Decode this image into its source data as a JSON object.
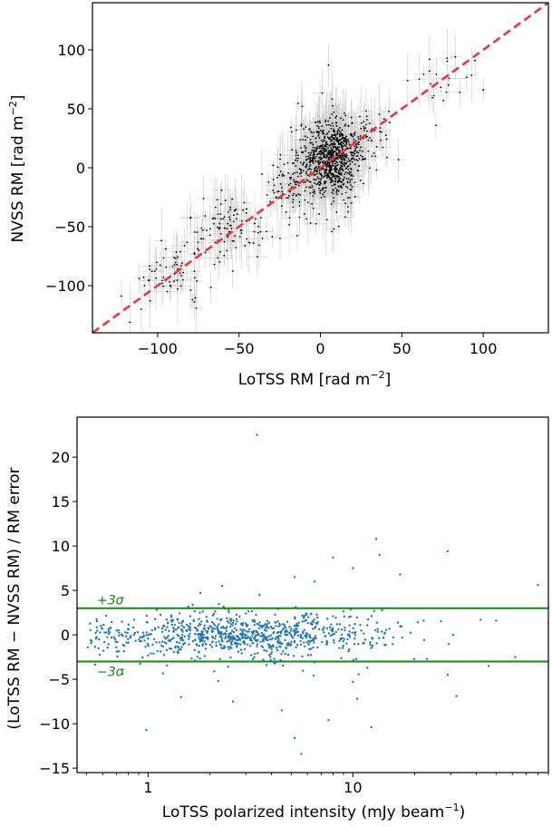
{
  "chart_data": [
    {
      "type": "scatter",
      "xlabel": "LoTSS RM [rad m",
      "xlabel_sup": "−2",
      "xlabel_end": "]",
      "ylabel": "NVSS RM [rad m",
      "ylabel_sup": "−2",
      "ylabel_end": "]",
      "xlim": [
        -140,
        140
      ],
      "ylim": [
        -140,
        140
      ],
      "xticks": [
        -100,
        -50,
        0,
        50,
        100
      ],
      "yticks": [
        -100,
        -50,
        0,
        50,
        100
      ],
      "xtick_labels": [
        "−100",
        "−50",
        "0",
        "50",
        "100"
      ],
      "ytick_labels": [
        "−100",
        "−50",
        "0",
        "50",
        "100"
      ],
      "reference_line": {
        "slope": 1,
        "intercept": 0,
        "color": "#e8383d",
        "style": "dashed"
      },
      "point_color": "#000000",
      "errorbar_color": "#cccccc",
      "clusters": [
        {
          "x_center": 8,
          "y_center": 10,
          "x_spread": 8,
          "y_spread": 14,
          "count": 700
        },
        {
          "x_center": 0,
          "y_center": 0,
          "x_spread": 12,
          "y_spread": 22,
          "count": 260
        },
        {
          "x_center": -55,
          "y_center": -50,
          "x_spread": 13,
          "y_spread": 13,
          "count": 110
        },
        {
          "x_center": -90,
          "y_center": -88,
          "x_spread": 12,
          "y_spread": 12,
          "count": 60
        },
        {
          "x_center": -20,
          "y_center": -18,
          "x_spread": 7,
          "y_spread": 7,
          "count": 50
        },
        {
          "x_center": 30,
          "y_center": 28,
          "x_spread": 10,
          "y_spread": 12,
          "count": 60
        },
        {
          "x_center": 70,
          "y_center": 70,
          "x_spread": 12,
          "y_spread": 14,
          "count": 20
        }
      ],
      "isolated_points": [
        {
          "x": 100,
          "y": 66
        },
        {
          "x": 95,
          "y": 91
        },
        {
          "x": 67,
          "y": 92
        },
        {
          "x": 5,
          "y": 87
        },
        {
          "x": -110,
          "y": -120
        },
        {
          "x": -117,
          "y": -131
        },
        {
          "x": -108,
          "y": -100
        }
      ]
    },
    {
      "type": "scatter",
      "xlabel": "LoTSS polarized intensity (mJy beam",
      "xlabel_sup": "−1",
      "xlabel_end": ")",
      "ylabel": "(LoTSS RM − NVSS RM) / RM error",
      "x_scale": "log",
      "xlim": [
        0.45,
        90
      ],
      "ylim": [
        -15.5,
        24.5
      ],
      "xticks": [
        1,
        10
      ],
      "xtick_labels": [
        "1",
        "10"
      ],
      "yticks": [
        -15,
        -10,
        -5,
        0,
        5,
        10,
        15,
        20
      ],
      "ytick_labels": [
        "−15",
        "−10",
        "−5",
        "0",
        "5",
        "10",
        "15",
        "20"
      ],
      "point_color": "#1f77b4",
      "reference_lines": [
        {
          "y": 3,
          "label": "+3σ",
          "color": "#138a13"
        },
        {
          "y": -3,
          "label": "−3σ",
          "color": "#138a13"
        }
      ],
      "bulk": {
        "x_log10_center": 0.45,
        "x_log10_spread": 0.35,
        "x_log10_min": -0.3,
        "x_log10_max": 1.95,
        "y_spread": 1.3,
        "count": 900
      },
      "outliers": [
        {
          "x": 3.4,
          "y": 22.5
        },
        {
          "x": 13,
          "y": 10.8
        },
        {
          "x": 8,
          "y": 8.7
        },
        {
          "x": 13.5,
          "y": 9
        },
        {
          "x": 29,
          "y": 9.4
        },
        {
          "x": 17,
          "y": 6.8
        },
        {
          "x": 10,
          "y": 7.5
        },
        {
          "x": 5.2,
          "y": 6.5
        },
        {
          "x": 6.5,
          "y": 6
        },
        {
          "x": 80,
          "y": 5.6
        },
        {
          "x": 2.3,
          "y": 5.5
        },
        {
          "x": 1.8,
          "y": 4.7
        },
        {
          "x": 3.5,
          "y": 4.5
        },
        {
          "x": 0.98,
          "y": -10.7
        },
        {
          "x": 5.2,
          "y": -11.6
        },
        {
          "x": 5.6,
          "y": -13.4
        },
        {
          "x": 4.5,
          "y": -8.5
        },
        {
          "x": 7.6,
          "y": -9.6
        },
        {
          "x": 12.3,
          "y": -10.4
        },
        {
          "x": 1.45,
          "y": -7
        },
        {
          "x": 2.6,
          "y": -7.5
        },
        {
          "x": 10.5,
          "y": -7.2
        },
        {
          "x": 10,
          "y": -5.3
        },
        {
          "x": 29,
          "y": -4.5
        },
        {
          "x": 32,
          "y": -6.9
        },
        {
          "x": 2.2,
          "y": -5.2
        },
        {
          "x": 0.75,
          "y": -4.4
        },
        {
          "x": 46,
          "y": -3.5
        },
        {
          "x": 62,
          "y": -2.5
        },
        {
          "x": 90,
          "y": 1.4
        },
        {
          "x": 42,
          "y": 1.7
        },
        {
          "x": 50,
          "y": 1.6
        }
      ]
    }
  ]
}
